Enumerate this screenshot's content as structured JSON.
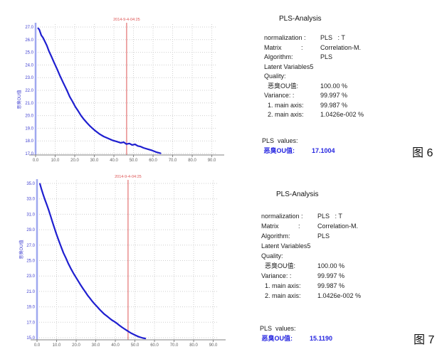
{
  "figures": [
    {
      "caption": "图 6",
      "analysis": {
        "title": "PLS-Analysis",
        "rows": [
          {
            "label": "normalization :",
            "value": "PLS   : T"
          },
          {
            "label": "Matrix           :",
            "value": "Correlation-M."
          },
          {
            "label": "Algorithm:",
            "value": "PLS"
          },
          {
            "label": "Latent Variables5",
            "value": ""
          },
          {
            "label": "Quality:",
            "value": ""
          },
          {
            "label": "  恶臭OU值:",
            "value": "100.00 %"
          },
          {
            "label": "Variance: :",
            "value": "99.997 %"
          },
          {
            "label": "  1. main axis:",
            "value": "99.987 %"
          },
          {
            "label": "  2. main axis:",
            "value": "1.0426e-002 %"
          }
        ],
        "pls_values_heading": "PLS  values:",
        "pls_value_label": " 恶臭OU值:",
        "pls_value": "17.1004"
      }
    },
    {
      "caption": "图 7",
      "analysis": {
        "title": "PLS-Analysis",
        "rows": [
          {
            "label": "normalization :",
            "value": "PLS   : T"
          },
          {
            "label": "Matrix           :",
            "value": "Correlation-M."
          },
          {
            "label": "Algorithm:",
            "value": "PLS"
          },
          {
            "label": "Latent Variables5",
            "value": ""
          },
          {
            "label": "Quality:",
            "value": ""
          },
          {
            "label": "  恶臭OU值:",
            "value": "100.00 %"
          },
          {
            "label": "Variance: :",
            "value": "99.997 %"
          },
          {
            "label": "  1. main axis:",
            "value": "99.987 %"
          },
          {
            "label": "  2. main axis:",
            "value": "1.0426e-002 %"
          }
        ],
        "pls_values_heading": "PLS  values:",
        "pls_value_label": " 恶臭OU值:",
        "pls_value": "15.1190"
      }
    }
  ],
  "chart_data": [
    {
      "type": "line",
      "y_axis_title": "恶臭OU值",
      "marker": {
        "x": 46.5,
        "label": "2014-9-4-04:25"
      },
      "xlim": [
        0,
        92.7
      ],
      "ylim": [
        17,
        27
      ],
      "x_ticks": [
        0,
        10,
        20,
        30,
        40,
        50,
        60,
        70,
        80,
        90
      ],
      "x_tick_labels": [
        "0.0",
        "10.0",
        "20.0",
        "30.0",
        "40.0",
        "50.0",
        "60.0",
        "70.0",
        "80.0",
        "90.0"
      ],
      "y_ticks": [
        27,
        26,
        25,
        24,
        23,
        22,
        21,
        20,
        19,
        18,
        17
      ],
      "y_tick_labels": [
        "27.0",
        "26.0",
        "25.0",
        "24.0",
        "23.0",
        "22.0",
        "21.0",
        "20.0",
        "19.0",
        "18.0",
        "17.0"
      ],
      "grid": true,
      "series": [
        {
          "name": "恶臭OU值",
          "color": "#1f1fd0",
          "points": [
            [
              1.3,
              26.9
            ],
            [
              1.9,
              26.8
            ],
            [
              2.9,
              26.35
            ],
            [
              3.8,
              26.15
            ],
            [
              4.6,
              25.9
            ],
            [
              5.7,
              25.55
            ],
            [
              6.8,
              25.1
            ],
            [
              8,
              24.7
            ],
            [
              9.4,
              24.2
            ],
            [
              10.9,
              23.7
            ],
            [
              12.3,
              23.2
            ],
            [
              14.1,
              22.6
            ],
            [
              16,
              22.0
            ],
            [
              17.4,
              21.5
            ],
            [
              18.9,
              21.1
            ],
            [
              20.3,
              20.7
            ],
            [
              21.8,
              20.35
            ],
            [
              23.2,
              20.0
            ],
            [
              24.7,
              19.7
            ],
            [
              26.1,
              19.45
            ],
            [
              27.6,
              19.2
            ],
            [
              29,
              19.0
            ],
            [
              30.5,
              18.8
            ],
            [
              32.6,
              18.55
            ],
            [
              34.8,
              18.35
            ],
            [
              37,
              18.2
            ],
            [
              39.2,
              18.05
            ],
            [
              41.4,
              17.95
            ],
            [
              43.5,
              17.85
            ],
            [
              45,
              17.9
            ],
            [
              46.4,
              17.75
            ],
            [
              47.9,
              17.8
            ],
            [
              49.3,
              17.68
            ],
            [
              50.8,
              17.73
            ],
            [
              52.2,
              17.6
            ],
            [
              53.7,
              17.55
            ],
            [
              55.1,
              17.45
            ],
            [
              57.3,
              17.35
            ],
            [
              59.5,
              17.25
            ],
            [
              61.6,
              17.12
            ],
            [
              63.8,
              17.02
            ]
          ]
        }
      ]
    },
    {
      "type": "line",
      "y_axis_title": "恶臭OU值",
      "marker": {
        "x": 46.5,
        "label": "2014-9-4-04:25"
      },
      "xlim": [
        0,
        92.7
      ],
      "ylim": [
        15,
        35
      ],
      "x_ticks": [
        0,
        10,
        20,
        30,
        40,
        50,
        60,
        70,
        80,
        90
      ],
      "x_tick_labels": [
        "0.0",
        "10.0",
        "20.0",
        "30.0",
        "40.0",
        "50.0",
        "60.0",
        "70.0",
        "80.0",
        "90.0"
      ],
      "y_ticks": [
        35,
        33,
        31,
        29,
        27,
        25,
        23,
        21,
        19,
        17,
        15
      ],
      "y_tick_labels": [
        "35.0",
        "33.0",
        "31.0",
        "29.0",
        "27.0",
        "25.0",
        "23.0",
        "21.0",
        "19.0",
        "17.0",
        "15.0"
      ],
      "grid": true,
      "series": [
        {
          "name": "恶臭OU值",
          "color": "#1f1fd0",
          "points": [
            [
              1.5,
              34.95
            ],
            [
              2.2,
              34.3
            ],
            [
              3.1,
              33.6
            ],
            [
              3.9,
              33.0
            ],
            [
              4.9,
              32.3
            ],
            [
              5.9,
              31.6
            ],
            [
              6.9,
              30.8
            ],
            [
              7.9,
              30.0
            ],
            [
              8.9,
              29.2
            ],
            [
              9.8,
              28.5
            ],
            [
              11.1,
              27.6
            ],
            [
              12.3,
              26.8
            ],
            [
              13.5,
              26.0
            ],
            [
              14.8,
              25.3
            ],
            [
              16,
              24.6
            ],
            [
              17.2,
              24.0
            ],
            [
              18.5,
              23.4
            ],
            [
              19.7,
              22.9
            ],
            [
              20.9,
              22.4
            ],
            [
              22.1,
              21.9
            ],
            [
              23.4,
              21.4
            ],
            [
              24.6,
              20.95
            ],
            [
              25.8,
              20.5
            ],
            [
              27.1,
              20.1
            ],
            [
              28.3,
              19.7
            ],
            [
              29.5,
              19.35
            ],
            [
              30.8,
              19.0
            ],
            [
              32,
              18.65
            ],
            [
              33.2,
              18.35
            ],
            [
              34.4,
              18.05
            ],
            [
              35.7,
              17.8
            ],
            [
              36.9,
              17.55
            ],
            [
              38.1,
              17.3
            ],
            [
              39.4,
              17.1
            ],
            [
              40.6,
              16.9
            ],
            [
              41.8,
              16.65
            ],
            [
              43.1,
              16.4
            ],
            [
              44.3,
              16.2
            ],
            [
              45.5,
              16.0
            ],
            [
              46.7,
              15.8
            ],
            [
              48,
              15.6
            ],
            [
              49.2,
              15.45
            ],
            [
              50.4,
              15.3
            ],
            [
              51.7,
              15.15
            ],
            [
              52.9,
              15.05
            ],
            [
              54.1,
              14.95
            ],
            [
              55.3,
              14.9
            ]
          ]
        }
      ]
    }
  ],
  "colors": {
    "curve_blue": "#1f1fd0",
    "marker_red": "#dd5555",
    "grid_gray": "#cfcfcf",
    "y_axis_blue": "#9fa8ef",
    "x_axis_gray": "#808080",
    "tick_label_blue": "#4040d0",
    "tick_label_gray": "#606060",
    "value_blue": "#2424e0"
  }
}
